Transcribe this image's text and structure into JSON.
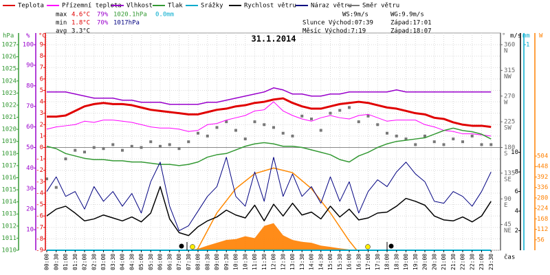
{
  "chart_data": {
    "type": "line",
    "title": "31.1.2014",
    "xlabel": "čas",
    "xlim": [
      0,
      24
    ],
    "x": [
      0,
      0.5,
      1,
      1.5,
      2,
      2.5,
      3,
      3.5,
      4,
      4.5,
      5,
      5.5,
      6,
      6.5,
      7,
      7.5,
      8,
      8.5,
      9,
      9.5,
      10,
      10.5,
      11,
      11.5,
      12,
      12.5,
      13,
      13.5,
      14,
      14.5,
      15,
      15.5,
      16,
      16.5,
      17,
      17.5,
      18,
      18.5,
      19,
      19.5,
      20,
      20.5,
      21,
      21.5,
      22,
      22.5,
      23,
      23.5
    ],
    "xticks": [
      {
        "value": 0,
        "label": "00:00"
      },
      {
        "value": 0.5,
        "label": "00:30"
      },
      {
        "value": 1,
        "label": "01:00"
      },
      {
        "value": 1.5,
        "label": "01:30"
      },
      {
        "value": 2,
        "label": "02:00"
      },
      {
        "value": 2.5,
        "label": "02:30"
      },
      {
        "value": 3,
        "label": "03:00"
      },
      {
        "value": 3.5,
        "label": "03:30"
      },
      {
        "value": 4,
        "label": "04:00"
      },
      {
        "value": 4.5,
        "label": "04:30"
      },
      {
        "value": 5,
        "label": "05:00"
      },
      {
        "value": 5.5,
        "label": "05:30"
      },
      {
        "value": 6,
        "label": "06:00"
      },
      {
        "value": 6.5,
        "label": "06:30"
      },
      {
        "value": 7,
        "label": "07:00"
      },
      {
        "value": 7.5,
        "label": "07:30"
      },
      {
        "value": 8,
        "label": "08:00"
      },
      {
        "value": 8.5,
        "label": "08:30"
      },
      {
        "value": 9,
        "label": "09:00"
      },
      {
        "value": 9.5,
        "label": "09:30"
      },
      {
        "value": 10,
        "label": "10:00"
      },
      {
        "value": 10.5,
        "label": "10:30"
      },
      {
        "value": 11,
        "label": "11:00"
      },
      {
        "value": 11.5,
        "label": "11:30"
      },
      {
        "value": 12,
        "label": "12:00"
      },
      {
        "value": 12.5,
        "label": "12:30"
      },
      {
        "value": 13,
        "label": "13:00"
      },
      {
        "value": 13.5,
        "label": "13:30"
      },
      {
        "value": 14,
        "label": "14:00"
      },
      {
        "value": 14.5,
        "label": "14:30"
      },
      {
        "value": 15,
        "label": "15:00"
      },
      {
        "value": 15.5,
        "label": "15:30"
      },
      {
        "value": 16,
        "label": "16:00"
      },
      {
        "value": 16.5,
        "label": "16:30"
      },
      {
        "value": 17,
        "label": "17:00"
      },
      {
        "value": 17.5,
        "label": "17:30"
      },
      {
        "value": 18,
        "label": "18:00"
      },
      {
        "value": 18.5,
        "label": "18:30"
      },
      {
        "value": 19,
        "label": "19:00"
      },
      {
        "value": 19.5,
        "label": "19:30"
      },
      {
        "value": 20,
        "label": "20:00"
      },
      {
        "value": 20.5,
        "label": "20:30"
      },
      {
        "value": 21,
        "label": "21:00"
      },
      {
        "value": 21.5,
        "label": "21:30"
      },
      {
        "value": 22,
        "label": "22:00"
      },
      {
        "value": 22.5,
        "label": "22:30"
      },
      {
        "value": 23,
        "label": "23:00"
      },
      {
        "value": 23.5,
        "label": "23:30"
      }
    ],
    "grid": true,
    "axes": {
      "hPa": {
        "label": "hPa",
        "color": "#339933",
        "lim": [
          1010,
          1027
        ],
        "ticks": [
          1010,
          1011,
          1012,
          1013,
          1014,
          1015,
          1016,
          1017,
          1018,
          1019,
          1020,
          1021,
          1022,
          1023,
          1024,
          1025,
          1026,
          1027
        ]
      },
      "pct": {
        "label": "%",
        "color": "#9900cc",
        "lim": [
          0,
          100
        ],
        "ticks": [
          10,
          20,
          30,
          40,
          50,
          60,
          70,
          80,
          90,
          100
        ]
      },
      "temp": {
        "label": "°C",
        "color": "#e00000",
        "lim": [
          -9,
          9
        ],
        "ticks": [
          -9,
          -8,
          -7,
          -6,
          -5,
          -4,
          -3,
          -2,
          -1,
          0,
          1,
          2,
          3,
          4,
          5,
          6,
          7,
          8,
          9
        ]
      },
      "deg": {
        "label": "°",
        "color": "#666666",
        "lim": [
          0,
          360
        ],
        "ticks": [
          {
            "value": 45,
            "label": "45",
            "dir": "NE"
          },
          {
            "value": 90,
            "label": "90",
            "dir": "E"
          },
          {
            "value": 135,
            "label": "135",
            "dir": "SE"
          },
          {
            "value": 180,
            "label": "180",
            "dir": "S"
          },
          {
            "value": 225,
            "label": "225",
            "dir": "SW"
          },
          {
            "value": 270,
            "label": "270",
            "dir": "W"
          },
          {
            "value": 315,
            "label": "315",
            "dir": "NW"
          },
          {
            "value": 360,
            "label": "360",
            "dir": "N"
          }
        ]
      },
      "ms": {
        "label": "m/s",
        "color": "#000000",
        "lim": [
          0,
          21
        ],
        "ticks": [
          2,
          4,
          6,
          8,
          10
        ]
      },
      "mm": {
        "label": "mm",
        "color": "#00aacc",
        "lim": [
          0,
          1
        ],
        "ticks": [
          1
        ]
      },
      "W": {
        "label": "W",
        "color": "#ff8000",
        "lim": [
          0,
          1100
        ],
        "ticks": [
          56,
          112,
          168,
          224,
          280,
          336,
          392,
          448,
          504
        ]
      }
    },
    "series": [
      {
        "name": "Teplota",
        "color": "#e00000",
        "axis": "temp",
        "width": 3,
        "values": [
          2.7,
          2.7,
          2.8,
          3.2,
          3.6,
          3.8,
          3.9,
          3.8,
          3.8,
          3.7,
          3.5,
          3.3,
          3.2,
          3.1,
          3.0,
          2.9,
          2.9,
          3.1,
          3.3,
          3.4,
          3.6,
          3.7,
          3.9,
          4.0,
          4.2,
          4.3,
          3.9,
          3.6,
          3.4,
          3.4,
          3.6,
          3.8,
          3.9,
          4.0,
          3.9,
          3.7,
          3.5,
          3.4,
          3.2,
          3.0,
          2.9,
          2.6,
          2.5,
          2.2,
          2.0,
          1.9,
          1.9,
          1.8
        ]
      },
      {
        "name": "Přízemní teplota",
        "color": "#ff00ff",
        "axis": "temp",
        "width": 1,
        "values": [
          1.6,
          1.8,
          1.9,
          2.0,
          2.3,
          2.2,
          2.4,
          2.4,
          2.3,
          2.2,
          2.0,
          1.8,
          1.7,
          1.7,
          1.6,
          1.4,
          1.5,
          2.0,
          2.1,
          2.4,
          2.6,
          2.8,
          3.2,
          3.3,
          4.0,
          3.2,
          2.8,
          2.5,
          2.3,
          2.6,
          2.8,
          2.6,
          2.5,
          2.8,
          2.9,
          2.6,
          2.3,
          2.4,
          2.4,
          2.4,
          2.0,
          1.8,
          1.5,
          1.4,
          1.2,
          1.2,
          1.1,
          1.0
        ]
      },
      {
        "name": "Vlhkost",
        "color": "#9900cc",
        "axis": "pct",
        "width": 1.5,
        "values": [
          77,
          77,
          77,
          76,
          75,
          74,
          74,
          74,
          73,
          73,
          72,
          72,
          72,
          71,
          71,
          71,
          71,
          72,
          72,
          73,
          74,
          75,
          76,
          77,
          79,
          78,
          76,
          76,
          75,
          75,
          76,
          76,
          77,
          77,
          77,
          77,
          77,
          78,
          77,
          77,
          77,
          77,
          77,
          77,
          77,
          77,
          77,
          77
        ]
      },
      {
        "name": "Tlak",
        "color": "#339933",
        "axis": "hPa",
        "width": 1.5,
        "values": [
          1018.6,
          1018.4,
          1018.0,
          1017.8,
          1017.6,
          1017.5,
          1017.5,
          1017.4,
          1017.4,
          1017.3,
          1017.3,
          1017.2,
          1017.1,
          1017.1,
          1017.0,
          1017.1,
          1017.3,
          1017.7,
          1017.9,
          1018.0,
          1018.3,
          1018.6,
          1018.8,
          1018.9,
          1018.8,
          1018.6,
          1018.6,
          1018.5,
          1018.3,
          1018.1,
          1017.9,
          1017.5,
          1017.3,
          1017.8,
          1018.1,
          1018.5,
          1018.8,
          1019.0,
          1019.1,
          1019.2,
          1019.3,
          1019.6,
          1019.9,
          1020.1,
          1019.9,
          1019.8,
          1019.6,
          1019.2
        ]
      },
      {
        "name": "Srážky",
        "color": "#00aacc",
        "axis": "mm",
        "width": 2,
        "values": [
          0,
          0,
          0,
          0,
          0,
          0,
          0,
          0,
          0,
          0,
          0,
          0,
          0,
          0,
          0,
          0,
          0,
          0,
          0,
          0,
          0,
          0,
          0,
          0,
          0,
          0,
          0,
          0,
          0,
          0,
          0,
          0,
          0,
          0,
          0,
          0,
          0,
          0,
          0,
          0,
          0,
          0,
          0,
          0,
          0,
          0,
          0,
          0
        ]
      },
      {
        "name": "Rychlost větru",
        "color": "#000000",
        "axis": "ms",
        "width": 1.5,
        "values": [
          3.5,
          4.2,
          4.5,
          3.8,
          3.0,
          3.2,
          3.6,
          3.3,
          3.0,
          3.4,
          2.9,
          3.8,
          6.5,
          3.2,
          1.8,
          1.5,
          2.4,
          3.0,
          3.4,
          4.1,
          3.6,
          3.3,
          4.6,
          3.0,
          4.7,
          3.5,
          4.8,
          3.6,
          3.9,
          3.2,
          4.5,
          3.4,
          4.2,
          3.1,
          3.3,
          3.8,
          3.9,
          4.5,
          5.3,
          5.0,
          4.6,
          3.5,
          3.1,
          3.0,
          3.4,
          2.9,
          3.5,
          5.0
        ]
      },
      {
        "name": "Náraz větru",
        "color": "#000080",
        "axis": "ms",
        "width": 1,
        "values": [
          6.0,
          7.5,
          5.5,
          6.0,
          4.2,
          6.5,
          5.0,
          6.0,
          4.5,
          5.8,
          3.8,
          7.0,
          9.0,
          4.5,
          2.0,
          2.5,
          4.0,
          5.5,
          6.5,
          9.5,
          5.5,
          4.5,
          8.0,
          5.0,
          9.5,
          5.5,
          7.8,
          5.5,
          6.5,
          4.8,
          7.5,
          5.0,
          7.0,
          3.8,
          6.0,
          7.2,
          6.5,
          8.0,
          9.0,
          7.8,
          7.0,
          5.0,
          4.8,
          6.0,
          5.5,
          4.5,
          6.0,
          8.0
        ]
      },
      {
        "name": "Směr větru",
        "color": "#777777",
        "axis": "deg",
        "type": "scatter",
        "values": [
          125,
          110,
          160,
          175,
          172,
          180,
          178,
          185,
          175,
          182,
          180,
          190,
          182,
          185,
          178,
          190,
          205,
          200,
          215,
          225,
          210,
          195,
          225,
          220,
          215,
          205,
          200,
          235,
          230,
          210,
          240,
          245,
          250,
          225,
          235,
          220,
          205,
          200,
          195,
          185,
          200,
          190,
          185,
          195,
          190,
          200,
          185,
          185
        ]
      }
    ],
    "radiation": {
      "color": "#ff8000",
      "axis": "W",
      "values": [
        0,
        0,
        0,
        0,
        0,
        0,
        0,
        0,
        0,
        0,
        0,
        0,
        0,
        0,
        0,
        2,
        8,
        25,
        40,
        55,
        60,
        75,
        65,
        130,
        145,
        80,
        55,
        45,
        40,
        25,
        18,
        10,
        4,
        0,
        0,
        0,
        0,
        0,
        0,
        0,
        0,
        0,
        0,
        0,
        0,
        0,
        0,
        0
      ]
    },
    "theoretical_radiation": {
      "color": "#ff8800",
      "axis": "W",
      "x": [
        7.9,
        8,
        9,
        10,
        11,
        12,
        13,
        14,
        15,
        16,
        16.4
      ],
      "values": [
        0,
        10,
        200,
        330,
        410,
        440,
        415,
        330,
        200,
        50,
        0
      ]
    },
    "stats": {
      "max": {
        "label": "max",
        "temp": "4.6°C",
        "hum": "79%",
        "press": "1020.1hPa",
        "rain": "0.0mm"
      },
      "min": {
        "label": "min",
        "temp": "1.8°C",
        "hum": "70%",
        "press": "1017hPa"
      },
      "avg": {
        "label": "avg",
        "temp": "3.3°C"
      },
      "ws": "WS:9m/s",
      "wg": "WG:9.9m/s",
      "sun_rise": "Slunce Východ:07:39",
      "sun_set": "Západ:17:01",
      "moon_rise": "Měsíc Východ:7:19",
      "moon_set": "Západ:18:07"
    }
  }
}
